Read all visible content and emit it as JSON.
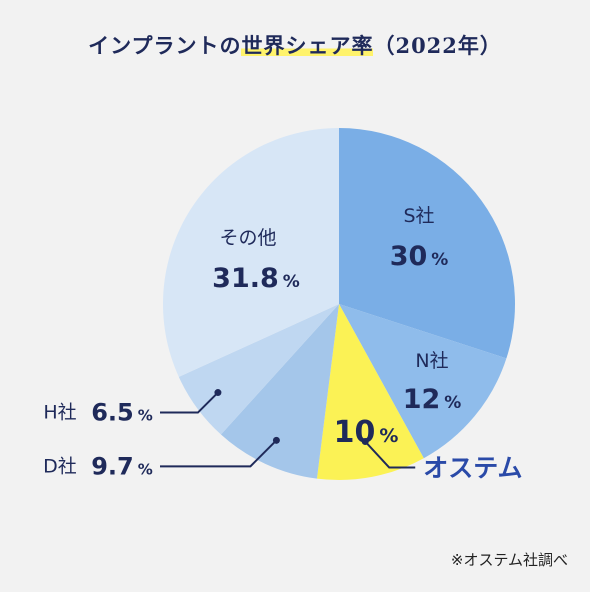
{
  "title": {
    "before": "インプラントの",
    "highlight": "世界シェア率",
    "after": "（2022年）"
  },
  "footnote": "※オステム社調べ",
  "colors": {
    "navy": "#1f2a5a",
    "brand_blue": "#2a4aa8",
    "highlight_yellow": "#fff36b"
  },
  "chart_data": {
    "type": "pie",
    "slices": [
      {
        "label": "S社",
        "value": 30,
        "value_text": "30",
        "color": "#7aaee6"
      },
      {
        "label": "N社",
        "value": 12,
        "value_text": "12",
        "color": "#8fbceb"
      },
      {
        "label": "オステム",
        "value": 10,
        "value_text": "10",
        "color": "#fbf255"
      },
      {
        "label": "D社",
        "value": 9.7,
        "value_text": "9.7",
        "color": "#a4c6ea"
      },
      {
        "label": "H社",
        "value": 6.5,
        "value_text": "6.5",
        "color": "#bfd7f1"
      },
      {
        "label": "その他",
        "value": 31.8,
        "value_text": "31.8",
        "color": "#d7e6f6"
      }
    ],
    "unit": "%"
  }
}
